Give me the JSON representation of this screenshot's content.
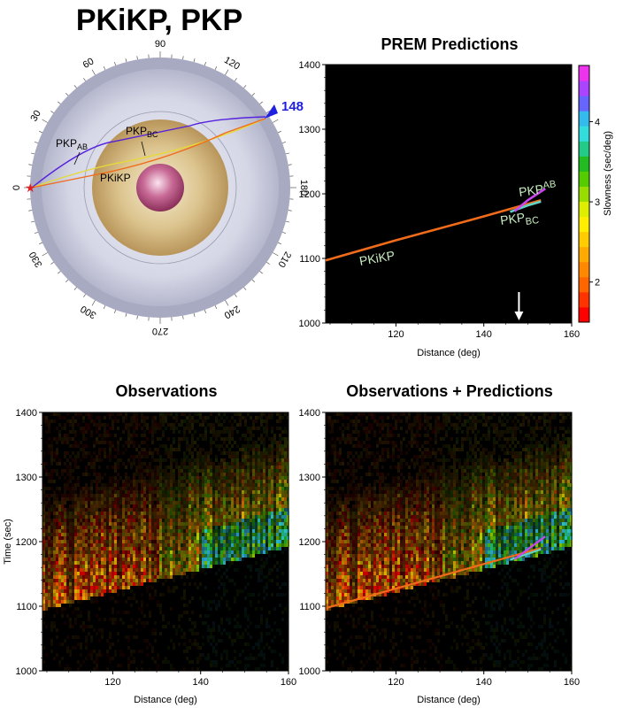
{
  "page": {
    "main_title": "PKiKP, PKP",
    "colors": {
      "mantle": "#c7c9dc",
      "outer_core": "#c8a964",
      "inner_core": "#b0507a",
      "pkp_ab": "#5522dd",
      "pkp_bc": "#e6d93a",
      "pkikp": "#f06b1a",
      "station": "#2020e0",
      "source": "#e02020",
      "label_green": "#c8f0c0",
      "panel_bg": "#000000"
    }
  },
  "earth_diagram": {
    "angle_ticks": [
      "0",
      "30",
      "60",
      "90",
      "120",
      "148",
      "180",
      "210",
      "240",
      "270",
      "300",
      "330"
    ],
    "station_label": "148",
    "phase_labels": {
      "pkp_ab": {
        "base": "PKP",
        "sub": "AB"
      },
      "pkp_bc": {
        "base": "PKP",
        "sub": "BC"
      },
      "pkikp": "PKiKP"
    }
  },
  "colorbar": {
    "label": "Slowness (sec/deg)",
    "ticks": [
      "2",
      "3",
      "4"
    ],
    "range": [
      1.5,
      4.7
    ],
    "colors": [
      "#ff0000",
      "#ff3300",
      "#ff6600",
      "#ff8800",
      "#ffaa00",
      "#ffcc00",
      "#ffee00",
      "#ddee00",
      "#99dd00",
      "#55cc00",
      "#22bb22",
      "#22cc88",
      "#33dddd",
      "#33bbee",
      "#6666ff",
      "#aa44ff",
      "#ee33ee"
    ]
  },
  "chart_data": [
    {
      "type": "line",
      "title": "PREM Predictions",
      "xlabel": "Distance (deg)",
      "ylabel": "",
      "xlim": [
        104,
        160
      ],
      "ylim": [
        1000,
        1400
      ],
      "xticks": [
        "120",
        "140",
        "160"
      ],
      "yticks": [
        "1000",
        "1100",
        "1200",
        "1300",
        "1400"
      ],
      "arrow_at_distance": 148,
      "series": [
        {
          "name": "PKiKP",
          "color": "#f06b1a",
          "x": [
            104,
            120,
            140,
            153
          ],
          "y": [
            1097,
            1128,
            1165,
            1190
          ]
        },
        {
          "name": "PKP_BC",
          "color": "#5fd4c8",
          "x": [
            146,
            150,
            153
          ],
          "y": [
            1172,
            1182,
            1188
          ]
        },
        {
          "name": "PKP_AB",
          "color": "#cc44ee",
          "x": [
            147,
            150,
            154
          ],
          "y": [
            1173,
            1190,
            1208
          ]
        }
      ],
      "labels": {
        "pkikp": "PKiKP",
        "pkp_ab": {
          "base": "PKP",
          "sub": "AB"
        },
        "pkp_bc": {
          "base": "PKP",
          "sub": "BC"
        }
      }
    },
    {
      "type": "heatmap",
      "title": "Observations",
      "xlabel": "Distance (deg)",
      "ylabel": "Time (sec)",
      "xlim": [
        104,
        160
      ],
      "ylim": [
        1000,
        1400
      ],
      "xticks": [
        "120",
        "140",
        "160"
      ],
      "yticks": [
        "1000",
        "1100",
        "1200",
        "1300",
        "1400"
      ],
      "onset_line": {
        "x": [
          104,
          160
        ],
        "y": [
          1097,
          1195
        ]
      }
    },
    {
      "type": "heatmap",
      "title": "Observations + Predictions",
      "xlabel": "Distance (deg)",
      "ylabel": "",
      "xlim": [
        104,
        160
      ],
      "ylim": [
        1000,
        1400
      ],
      "xticks": [
        "120",
        "140",
        "160"
      ],
      "yticks": [
        "1000",
        "1100",
        "1200",
        "1300",
        "1400"
      ],
      "overlay_series": [
        {
          "name": "PKiKP",
          "color": "#f06b1a",
          "x": [
            104,
            153
          ],
          "y": [
            1097,
            1190
          ]
        },
        {
          "name": "PKP_BC",
          "color": "#5fd4c8",
          "x": [
            146,
            153
          ],
          "y": [
            1172,
            1188
          ]
        },
        {
          "name": "PKP_AB",
          "color": "#cc44ee",
          "x": [
            147,
            154
          ],
          "y": [
            1173,
            1208
          ]
        }
      ]
    }
  ]
}
